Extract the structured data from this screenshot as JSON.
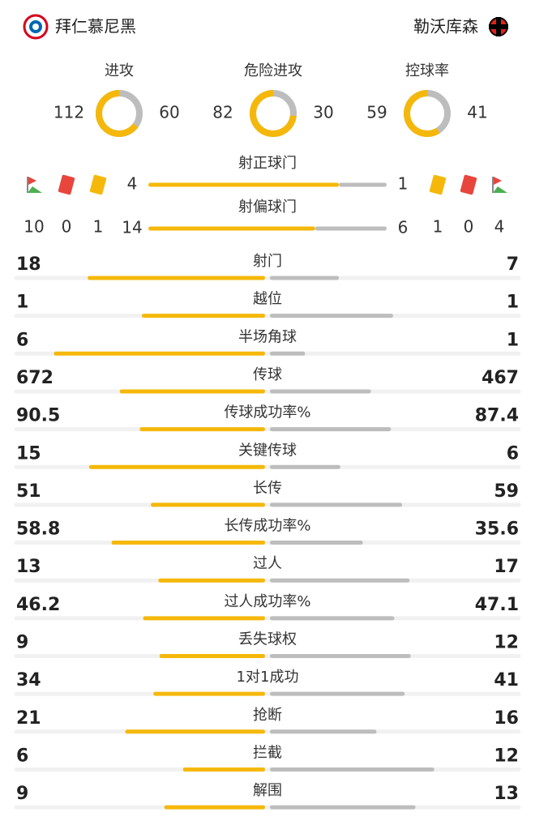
{
  "header": {
    "home_team": "拜仁慕尼黑",
    "away_team": "勒沃库森"
  },
  "ratios": [
    {
      "label": "进攻",
      "home": 112,
      "away": 60
    },
    {
      "label": "危险进攻",
      "home": 82,
      "away": 30
    },
    {
      "label": "控球率",
      "home": 59,
      "away": 41
    }
  ],
  "shots": [
    {
      "label": "射正球门",
      "home": 4,
      "away": 1
    },
    {
      "label": "射偏球门",
      "home": 14,
      "away": 6
    }
  ],
  "set_pieces": {
    "home": {
      "corners": 10,
      "red_cards": 0,
      "yellow_cards": 1
    },
    "away": {
      "yellow_cards": 1,
      "red_cards": 0,
      "corners": 4
    }
  },
  "stats": [
    {
      "label": "射门",
      "home": 18,
      "away": 7
    },
    {
      "label": "越位",
      "home": 1,
      "away": 1
    },
    {
      "label": "半场角球",
      "home": 6,
      "away": 1
    },
    {
      "label": "传球",
      "home": 672,
      "away": 467
    },
    {
      "label": "传球成功率%",
      "home": 90.5,
      "away": 87.4
    },
    {
      "label": "关键传球",
      "home": 15,
      "away": 6
    },
    {
      "label": "长传",
      "home": 51,
      "away": 59
    },
    {
      "label": "长传成功率%",
      "home": 58.8,
      "away": 35.6
    },
    {
      "label": "过人",
      "home": 13,
      "away": 17
    },
    {
      "label": "过人成功率%",
      "home": 46.2,
      "away": 47.1
    },
    {
      "label": "丢失球权",
      "home": 9,
      "away": 12
    },
    {
      "label": "1对1成功",
      "home": 34,
      "away": 41
    },
    {
      "label": "抢断",
      "home": 21,
      "away": 16
    },
    {
      "label": "拦截",
      "home": 6,
      "away": 12
    },
    {
      "label": "解围",
      "home": 9,
      "away": 13
    }
  ]
}
